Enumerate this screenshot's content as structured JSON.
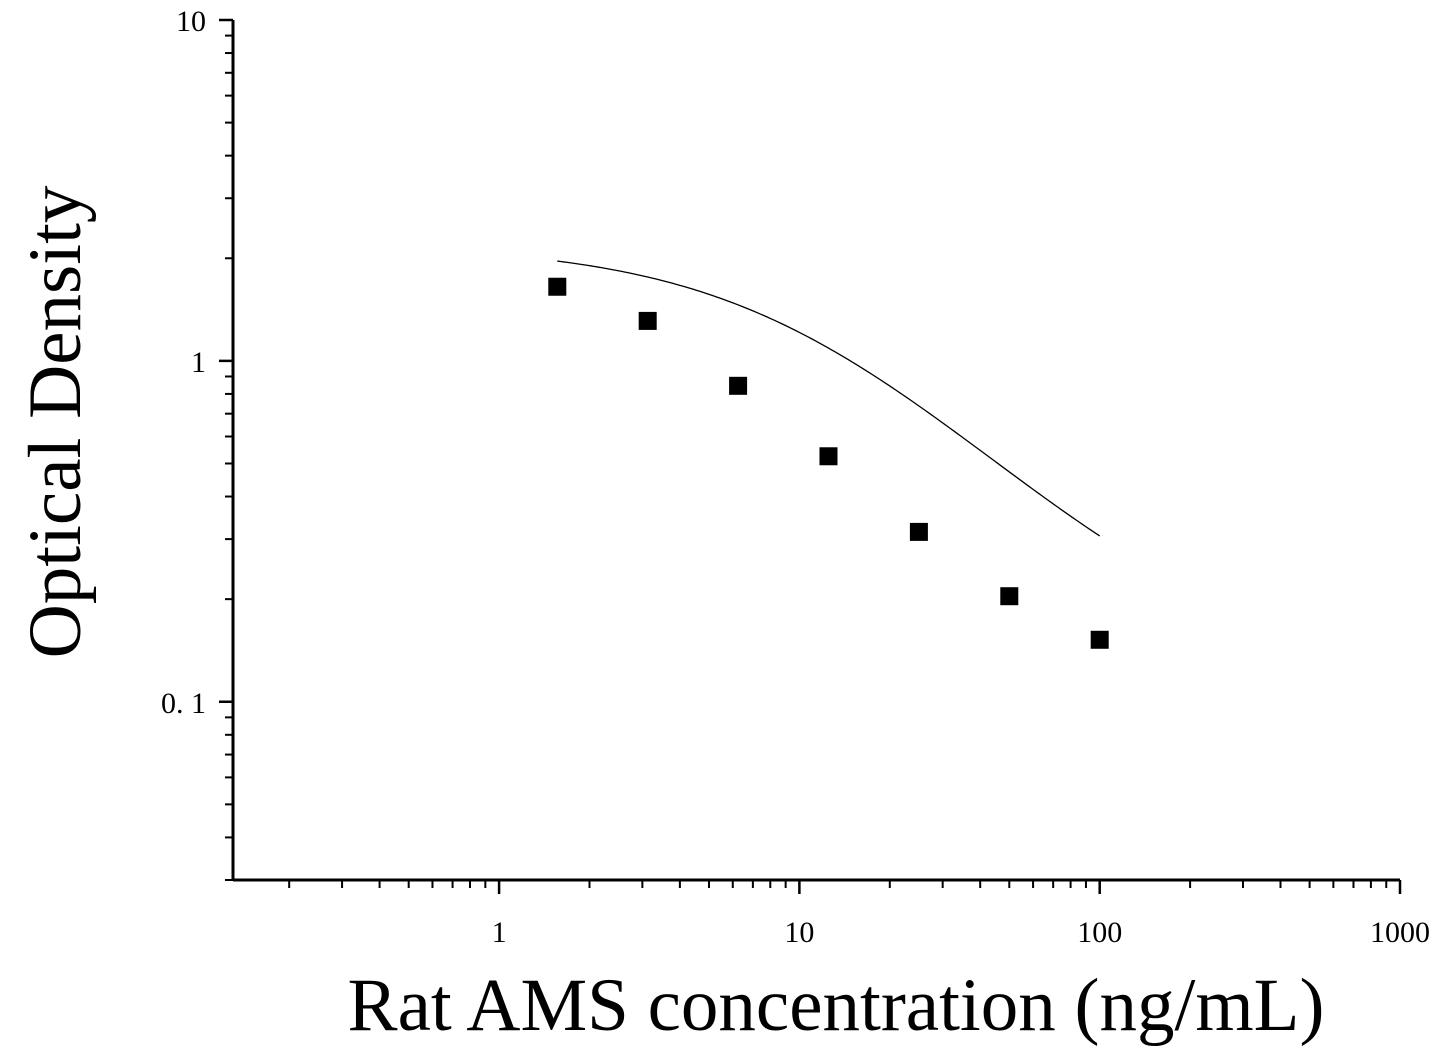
{
  "chart_data": {
    "type": "scatter",
    "xlabel": "Rat AMS concentration (ng/mL)",
    "ylabel": "Optical Density",
    "x_scale": "log",
    "y_scale": "log",
    "xlim": [
      0.13,
      1000
    ],
    "ylim": [
      0.03,
      10
    ],
    "x_ticks": [
      {
        "value": 1,
        "label": "1"
      },
      {
        "value": 10,
        "label": "10"
      },
      {
        "value": 100,
        "label": "100"
      },
      {
        "value": 1000,
        "label": "1000"
      }
    ],
    "y_ticks": [
      {
        "value": 0.1,
        "label": "0. 1"
      },
      {
        "value": 1,
        "label": "1"
      },
      {
        "value": 10,
        "label": "10"
      }
    ],
    "grid": false,
    "legend": "none",
    "series": [
      {
        "marker": "square",
        "color": "#000000",
        "points": [
          {
            "x": 1.5625,
            "y": 1.65
          },
          {
            "x": 3.125,
            "y": 1.31
          },
          {
            "x": 6.25,
            "y": 0.845
          },
          {
            "x": 12.5,
            "y": 0.525
          },
          {
            "x": 25,
            "y": 0.315
          },
          {
            "x": 50,
            "y": 0.204
          },
          {
            "x": 100,
            "y": 0.152
          }
        ]
      }
    ],
    "fit_curve": {
      "model": "4PL",
      "color": "#000000",
      "top": 2.2,
      "bottom": 0.12,
      "ec50": 11,
      "hill": 1.05
    }
  }
}
